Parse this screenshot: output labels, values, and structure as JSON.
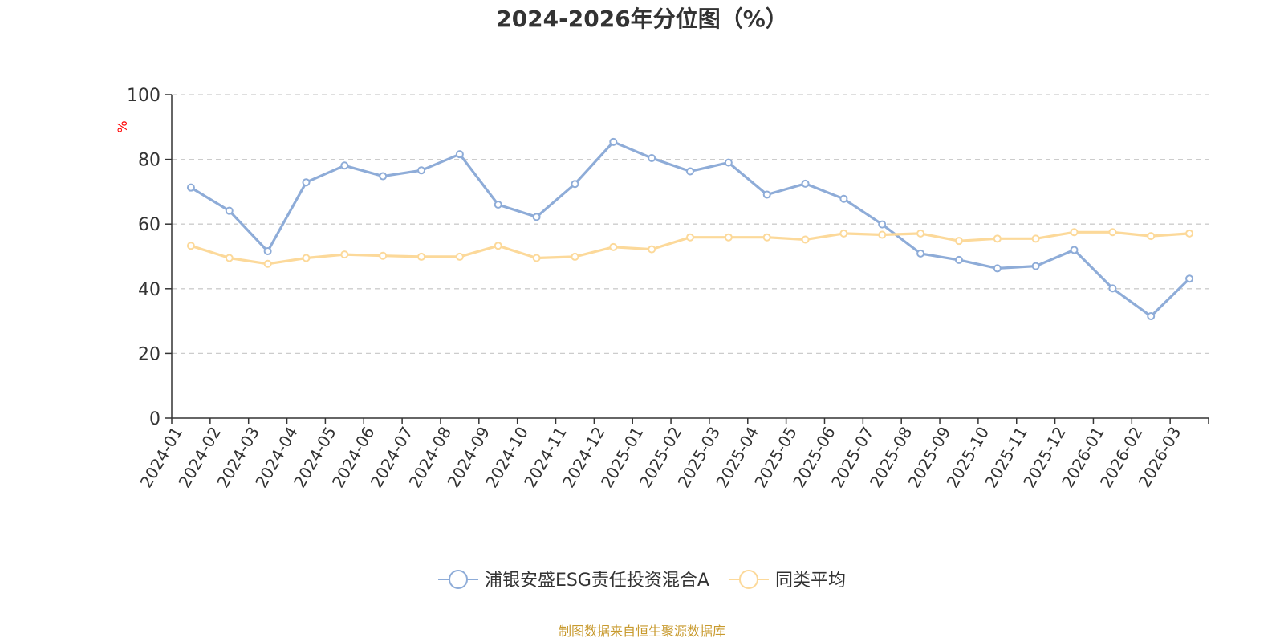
{
  "chart_data": {
    "type": "line",
    "title": "2024-2026年分位图（%）",
    "ylabel": "%",
    "xlabel": "",
    "ylim": [
      0,
      100
    ],
    "yticks": [
      0,
      20,
      40,
      60,
      80,
      100
    ],
    "grid": true,
    "legend_position": "bottom",
    "categories": [
      "2024-01",
      "2024-02",
      "2024-03",
      "2024-04",
      "2024-05",
      "2024-06",
      "2024-07",
      "2024-08",
      "2024-09",
      "2024-10",
      "2024-11",
      "2024-12",
      "2025-01",
      "2025-02",
      "2025-03",
      "2025-04",
      "2025-05",
      "2025-06",
      "2025-07",
      "2025-08",
      "2025-09",
      "2025-10",
      "2025-11",
      "2025-12",
      "2026-01",
      "2026-02",
      "2026-03"
    ],
    "series": [
      {
        "name": "浦银安盛ESG责任投资混合A",
        "color": "#8eacd8",
        "values": [
          71.3,
          64.1,
          51.6,
          72.9,
          78.1,
          74.8,
          76.6,
          81.6,
          66.0,
          62.2,
          72.4,
          85.4,
          80.4,
          76.3,
          79.0,
          69.1,
          72.5,
          67.8,
          59.9,
          50.9,
          48.9,
          46.3,
          47.0,
          52.0,
          40.1,
          31.5,
          43.1
        ]
      },
      {
        "name": "同类平均",
        "color": "#fcd99a",
        "values": [
          53.3,
          49.5,
          47.7,
          49.5,
          50.6,
          50.2,
          49.9,
          49.9,
          53.3,
          49.5,
          49.9,
          52.9,
          52.2,
          55.9,
          55.9,
          55.9,
          55.2,
          57.1,
          56.7,
          57.1,
          54.8,
          55.5,
          55.5,
          57.5,
          57.5,
          56.3,
          57.1
        ]
      }
    ],
    "source_note": "制图数据来自恒生聚源数据库",
    "source_color": "#c89a2e",
    "unit_color": "#ff0000"
  }
}
